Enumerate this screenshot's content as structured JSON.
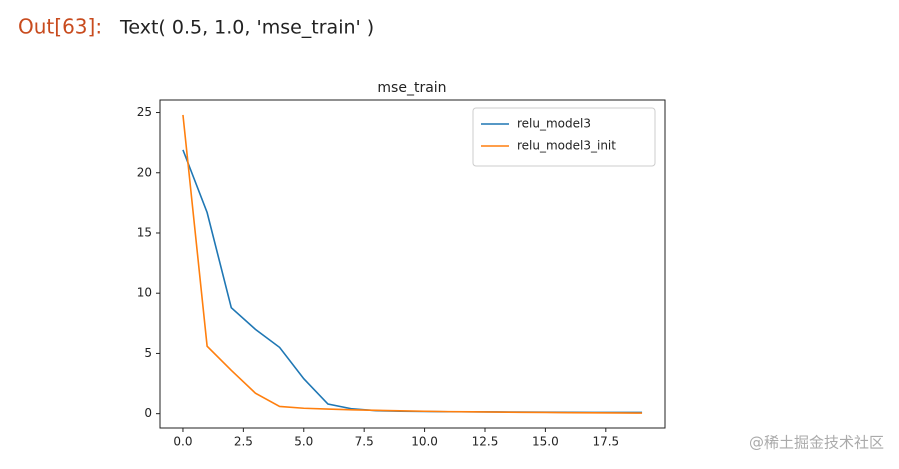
{
  "prompt": "Out[63]:",
  "output_text": "Text( 0.5, 1.0, 'mse_train' )",
  "watermark": "@稀土掘金技术社区",
  "chart_data": {
    "type": "line",
    "title": "mse_train",
    "x": [
      0,
      1,
      2,
      3,
      4,
      5,
      6,
      7,
      8,
      9,
      10,
      11,
      12,
      13,
      14,
      15,
      16,
      17,
      18,
      19
    ],
    "series": [
      {
        "name": "relu_model3",
        "color": "#1f77b4",
        "values": [
          21.9,
          16.7,
          8.8,
          7.0,
          5.5,
          2.9,
          0.8,
          0.4,
          0.25,
          0.2,
          0.18,
          0.16,
          0.15,
          0.14,
          0.13,
          0.12,
          0.11,
          0.1,
          0.1,
          0.1
        ]
      },
      {
        "name": "relu_model3_init",
        "color": "#ff7f0e",
        "values": [
          24.8,
          5.6,
          3.6,
          1.7,
          0.6,
          0.45,
          0.38,
          0.32,
          0.28,
          0.24,
          0.2,
          0.17,
          0.15,
          0.13,
          0.11,
          0.1,
          0.08,
          0.07,
          0.06,
          0.05
        ]
      }
    ],
    "xlim": [
      -0.95,
      19.95
    ],
    "ylim": [
      -1.19,
      26.04
    ],
    "xticks": [
      {
        "value": 0,
        "label": "0.0"
      },
      2.5,
      {
        "value": 5,
        "label": "5.0"
      },
      7.5,
      {
        "value": 10,
        "label": "10.0"
      },
      12.5,
      {
        "value": 15,
        "label": "15.0"
      },
      17.5
    ],
    "yticks": [
      0,
      5,
      10,
      15,
      20,
      25
    ],
    "legend": "upper right"
  }
}
